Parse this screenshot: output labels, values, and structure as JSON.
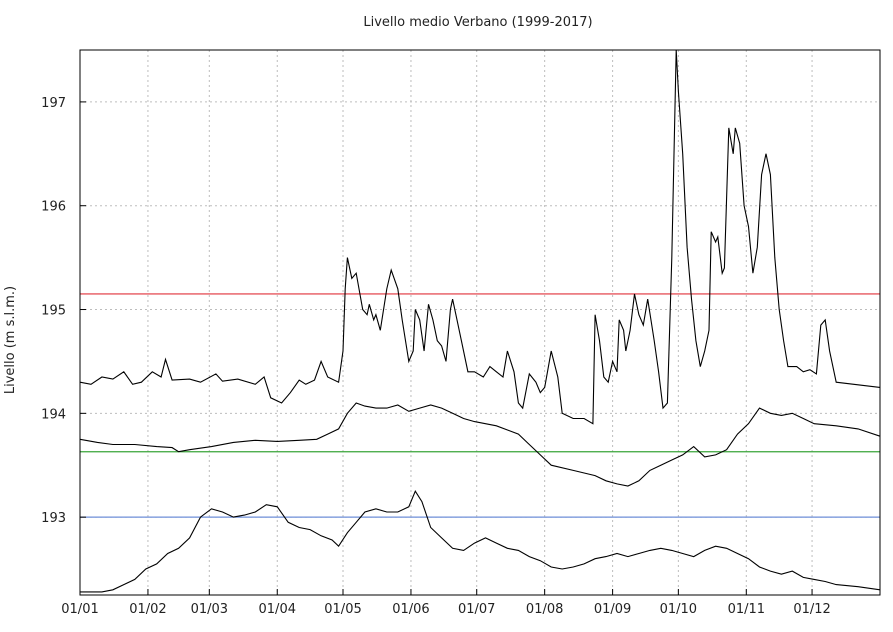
{
  "chart_data": {
    "type": "line",
    "title": "Livello medio Verbano (1999-2017)",
    "xlabel": "",
    "ylabel": "Livello (m s.l.m.)",
    "ylim": [
      192.25,
      197.5
    ],
    "yticks": [
      193,
      194,
      195,
      196,
      197
    ],
    "xlim": [
      0,
      365
    ],
    "x_tick_labels": [
      "01/01",
      "01/02",
      "01/03",
      "01/04",
      "01/05",
      "01/06",
      "01/07",
      "01/08",
      "01/09",
      "01/10",
      "01/11",
      "01/12"
    ],
    "x_tick_positions": [
      0,
      31,
      59,
      90,
      120,
      151,
      181,
      212,
      243,
      273,
      304,
      334
    ],
    "grid": true,
    "legend": "none",
    "series": [
      {
        "color": "#000000",
        "points": [
          [
            0,
            194.3
          ],
          [
            5,
            194.28
          ],
          [
            10,
            194.35
          ],
          [
            15,
            194.33
          ],
          [
            20,
            194.4
          ],
          [
            24,
            194.28
          ],
          [
            28,
            194.3
          ],
          [
            33,
            194.4
          ],
          [
            37,
            194.35
          ],
          [
            39,
            194.52
          ],
          [
            42,
            194.32
          ],
          [
            50,
            194.33
          ],
          [
            55,
            194.3
          ],
          [
            62,
            194.38
          ],
          [
            65,
            194.31
          ],
          [
            72,
            194.33
          ],
          [
            80,
            194.28
          ],
          [
            84,
            194.35
          ],
          [
            87,
            194.15
          ],
          [
            92,
            194.1
          ],
          [
            96,
            194.2
          ],
          [
            100,
            194.32
          ],
          [
            103,
            194.28
          ],
          [
            107,
            194.32
          ],
          [
            110,
            194.5
          ],
          [
            113,
            194.35
          ],
          [
            118,
            194.3
          ],
          [
            120,
            194.6
          ],
          [
            121,
            195.2
          ],
          [
            122,
            195.5
          ],
          [
            124,
            195.3
          ],
          [
            126,
            195.35
          ],
          [
            129,
            195.0
          ],
          [
            131,
            194.95
          ],
          [
            132,
            195.05
          ],
          [
            134,
            194.9
          ],
          [
            135,
            194.95
          ],
          [
            137,
            194.8
          ],
          [
            140,
            195.2
          ],
          [
            142,
            195.38
          ],
          [
            145,
            195.2
          ],
          [
            147,
            194.9
          ],
          [
            150,
            194.5
          ],
          [
            152,
            194.6
          ],
          [
            153,
            195.0
          ],
          [
            155,
            194.9
          ],
          [
            157,
            194.6
          ],
          [
            159,
            195.05
          ],
          [
            161,
            194.9
          ],
          [
            163,
            194.7
          ],
          [
            165,
            194.65
          ],
          [
            167,
            194.5
          ],
          [
            169,
            195.0
          ],
          [
            170,
            195.1
          ],
          [
            172,
            194.9
          ],
          [
            174,
            194.7
          ],
          [
            177,
            194.4
          ],
          [
            180,
            194.4
          ],
          [
            184,
            194.35
          ],
          [
            187,
            194.45
          ],
          [
            190,
            194.4
          ],
          [
            193,
            194.35
          ],
          [
            195,
            194.6
          ],
          [
            198,
            194.4
          ],
          [
            200,
            194.1
          ],
          [
            202,
            194.05
          ],
          [
            205,
            194.38
          ],
          [
            208,
            194.3
          ],
          [
            210,
            194.2
          ],
          [
            212,
            194.25
          ],
          [
            215,
            194.6
          ],
          [
            218,
            194.35
          ],
          [
            220,
            194.0
          ],
          [
            225,
            193.95
          ],
          [
            230,
            193.95
          ],
          [
            234,
            193.9
          ],
          [
            235,
            194.95
          ],
          [
            237,
            194.7
          ],
          [
            239,
            194.35
          ],
          [
            241,
            194.3
          ],
          [
            243,
            194.5
          ],
          [
            245,
            194.4
          ],
          [
            246,
            194.9
          ],
          [
            248,
            194.8
          ],
          [
            249,
            194.6
          ],
          [
            251,
            194.8
          ],
          [
            253,
            195.15
          ],
          [
            255,
            194.95
          ],
          [
            257,
            194.85
          ],
          [
            259,
            195.1
          ],
          [
            262,
            194.7
          ],
          [
            264,
            194.4
          ],
          [
            266,
            194.05
          ],
          [
            268,
            194.1
          ],
          [
            270,
            195.5
          ],
          [
            272,
            197.5
          ],
          [
            273,
            197.1
          ],
          [
            275,
            196.5
          ],
          [
            277,
            195.6
          ],
          [
            279,
            195.1
          ],
          [
            281,
            194.7
          ],
          [
            283,
            194.45
          ],
          [
            285,
            194.6
          ],
          [
            287,
            194.8
          ],
          [
            288,
            195.75
          ],
          [
            290,
            195.65
          ],
          [
            291,
            195.7
          ],
          [
            293,
            195.35
          ],
          [
            294,
            195.4
          ],
          [
            296,
            196.75
          ],
          [
            298,
            196.5
          ],
          [
            299,
            196.75
          ],
          [
            301,
            196.6
          ],
          [
            303,
            196.0
          ],
          [
            305,
            195.8
          ],
          [
            307,
            195.35
          ],
          [
            309,
            195.6
          ],
          [
            311,
            196.3
          ],
          [
            313,
            196.5
          ],
          [
            315,
            196.3
          ],
          [
            317,
            195.5
          ],
          [
            319,
            195.0
          ],
          [
            321,
            194.7
          ],
          [
            323,
            194.45
          ],
          [
            327,
            194.45
          ],
          [
            330,
            194.4
          ],
          [
            333,
            194.42
          ],
          [
            336,
            194.38
          ],
          [
            338,
            194.85
          ],
          [
            340,
            194.9
          ],
          [
            342,
            194.6
          ],
          [
            345,
            194.3
          ],
          [
            365,
            194.25
          ]
        ]
      },
      {
        "color": "#000000",
        "points": [
          [
            0,
            193.75
          ],
          [
            8,
            193.72
          ],
          [
            15,
            193.7
          ],
          [
            25,
            193.7
          ],
          [
            35,
            193.68
          ],
          [
            42,
            193.67
          ],
          [
            45,
            193.63
          ],
          [
            50,
            193.65
          ],
          [
            60,
            193.68
          ],
          [
            70,
            193.72
          ],
          [
            80,
            193.74
          ],
          [
            90,
            193.73
          ],
          [
            100,
            193.74
          ],
          [
            108,
            193.75
          ],
          [
            113,
            193.8
          ],
          [
            118,
            193.85
          ],
          [
            122,
            194.0
          ],
          [
            126,
            194.1
          ],
          [
            130,
            194.07
          ],
          [
            135,
            194.05
          ],
          [
            140,
            194.05
          ],
          [
            145,
            194.08
          ],
          [
            150,
            194.02
          ],
          [
            155,
            194.05
          ],
          [
            160,
            194.08
          ],
          [
            165,
            194.05
          ],
          [
            170,
            194.0
          ],
          [
            175,
            193.95
          ],
          [
            180,
            193.92
          ],
          [
            190,
            193.88
          ],
          [
            200,
            193.8
          ],
          [
            205,
            193.7
          ],
          [
            210,
            193.6
          ],
          [
            215,
            193.5
          ],
          [
            225,
            193.45
          ],
          [
            235,
            193.4
          ],
          [
            240,
            193.35
          ],
          [
            245,
            193.32
          ],
          [
            250,
            193.3
          ],
          [
            255,
            193.35
          ],
          [
            260,
            193.45
          ],
          [
            265,
            193.5
          ],
          [
            270,
            193.55
          ],
          [
            275,
            193.6
          ],
          [
            280,
            193.68
          ],
          [
            285,
            193.58
          ],
          [
            290,
            193.6
          ],
          [
            295,
            193.65
          ],
          [
            300,
            193.8
          ],
          [
            305,
            193.9
          ],
          [
            310,
            194.05
          ],
          [
            315,
            194.0
          ],
          [
            320,
            193.98
          ],
          [
            325,
            194.0
          ],
          [
            330,
            193.95
          ],
          [
            335,
            193.9
          ],
          [
            345,
            193.88
          ],
          [
            355,
            193.85
          ],
          [
            365,
            193.78
          ]
        ]
      },
      {
        "color": "#000000",
        "points": [
          [
            0,
            192.28
          ],
          [
            10,
            192.28
          ],
          [
            15,
            192.3
          ],
          [
            20,
            192.35
          ],
          [
            25,
            192.4
          ],
          [
            30,
            192.5
          ],
          [
            35,
            192.55
          ],
          [
            40,
            192.65
          ],
          [
            45,
            192.7
          ],
          [
            50,
            192.8
          ],
          [
            55,
            193.0
          ],
          [
            60,
            193.08
          ],
          [
            65,
            193.05
          ],
          [
            70,
            193.0
          ],
          [
            75,
            193.02
          ],
          [
            80,
            193.05
          ],
          [
            85,
            193.12
          ],
          [
            90,
            193.1
          ],
          [
            95,
            192.95
          ],
          [
            100,
            192.9
          ],
          [
            105,
            192.88
          ],
          [
            110,
            192.82
          ],
          [
            115,
            192.78
          ],
          [
            118,
            192.72
          ],
          [
            122,
            192.85
          ],
          [
            126,
            192.95
          ],
          [
            130,
            193.05
          ],
          [
            135,
            193.08
          ],
          [
            140,
            193.05
          ],
          [
            145,
            193.05
          ],
          [
            150,
            193.1
          ],
          [
            153,
            193.25
          ],
          [
            156,
            193.15
          ],
          [
            160,
            192.9
          ],
          [
            165,
            192.8
          ],
          [
            170,
            192.7
          ],
          [
            175,
            192.68
          ],
          [
            180,
            192.75
          ],
          [
            185,
            192.8
          ],
          [
            190,
            192.75
          ],
          [
            195,
            192.7
          ],
          [
            200,
            192.68
          ],
          [
            205,
            192.62
          ],
          [
            210,
            192.58
          ],
          [
            215,
            192.52
          ],
          [
            220,
            192.5
          ],
          [
            225,
            192.52
          ],
          [
            230,
            192.55
          ],
          [
            235,
            192.6
          ],
          [
            240,
            192.62
          ],
          [
            245,
            192.65
          ],
          [
            250,
            192.62
          ],
          [
            255,
            192.65
          ],
          [
            260,
            192.68
          ],
          [
            265,
            192.7
          ],
          [
            270,
            192.68
          ],
          [
            275,
            192.65
          ],
          [
            280,
            192.62
          ],
          [
            285,
            192.68
          ],
          [
            290,
            192.72
          ],
          [
            295,
            192.7
          ],
          [
            300,
            192.65
          ],
          [
            305,
            192.6
          ],
          [
            310,
            192.52
          ],
          [
            315,
            192.48
          ],
          [
            320,
            192.45
          ],
          [
            325,
            192.48
          ],
          [
            330,
            192.42
          ],
          [
            335,
            192.4
          ],
          [
            340,
            192.38
          ],
          [
            345,
            192.35
          ],
          [
            355,
            192.33
          ],
          [
            365,
            192.3
          ]
        ]
      }
    ],
    "hlines": [
      {
        "value": 195.15,
        "color": "#e0303a"
      },
      {
        "value": 193.63,
        "color": "#3aa53a"
      },
      {
        "value": 193.0,
        "color": "#6f8fd8"
      }
    ]
  }
}
